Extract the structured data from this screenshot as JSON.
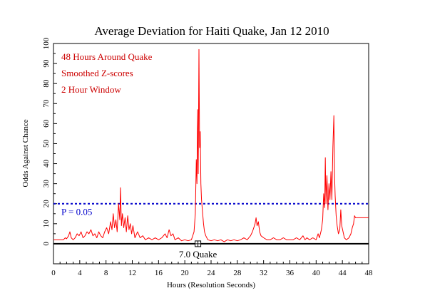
{
  "chart_data": {
    "type": "line",
    "title": "Average Deviation for Haiti Quake, Jan 12 2010",
    "xlabel": "Hours (Resolution Seconds)",
    "ylabel": "Odds Against Chance",
    "xlim": [
      0,
      48
    ],
    "ylim": [
      -10,
      100
    ],
    "x_ticks": [
      0,
      4,
      8,
      12,
      16,
      20,
      24,
      28,
      32,
      36,
      40,
      44,
      48
    ],
    "y_ticks": [
      0,
      10,
      20,
      30,
      40,
      50,
      60,
      70,
      80,
      90,
      100
    ],
    "annotations": [
      "48 Hours Around Quake",
      "Smoothed Z-scores",
      "2 Hour Window"
    ],
    "threshold": {
      "label": "P = 0.05",
      "value": 20
    },
    "event": {
      "label": "7.0 Quake",
      "x": 22
    },
    "series": [
      {
        "color": "#ff0000",
        "points": [
          [
            0,
            2
          ],
          [
            1,
            2
          ],
          [
            1.5,
            2
          ],
          [
            1.8,
            3
          ],
          [
            2,
            2.5
          ],
          [
            2.3,
            4
          ],
          [
            2.5,
            6
          ],
          [
            2.7,
            3
          ],
          [
            3,
            2
          ],
          [
            3.3,
            3
          ],
          [
            3.6,
            5
          ],
          [
            3.9,
            4
          ],
          [
            4.2,
            6
          ],
          [
            4.5,
            3
          ],
          [
            4.8,
            4
          ],
          [
            5.1,
            6
          ],
          [
            5.4,
            5
          ],
          [
            5.7,
            7
          ],
          [
            6,
            4
          ],
          [
            6.3,
            5
          ],
          [
            6.6,
            3
          ],
          [
            6.9,
            6
          ],
          [
            7.2,
            4
          ],
          [
            7.5,
            3
          ],
          [
            7.8,
            6
          ],
          [
            8.1,
            8
          ],
          [
            8.4,
            5
          ],
          [
            8.7,
            11
          ],
          [
            8.9,
            7
          ],
          [
            9.1,
            15
          ],
          [
            9.3,
            8
          ],
          [
            9.5,
            12
          ],
          [
            9.7,
            6
          ],
          [
            9.9,
            20
          ],
          [
            10.1,
            12
          ],
          [
            10.2,
            28
          ],
          [
            10.35,
            9
          ],
          [
            10.5,
            15
          ],
          [
            10.7,
            8
          ],
          [
            10.9,
            13
          ],
          [
            11.1,
            6
          ],
          [
            11.3,
            14
          ],
          [
            11.5,
            7
          ],
          [
            11.7,
            10
          ],
          [
            11.9,
            5
          ],
          [
            12.1,
            9
          ],
          [
            12.4,
            3
          ],
          [
            12.8,
            6
          ],
          [
            13.2,
            3
          ],
          [
            13.6,
            4
          ],
          [
            14,
            2
          ],
          [
            14.5,
            3
          ],
          [
            15,
            2
          ],
          [
            15.5,
            3
          ],
          [
            16,
            2
          ],
          [
            16.5,
            3
          ],
          [
            17,
            5
          ],
          [
            17.3,
            3
          ],
          [
            17.6,
            7
          ],
          [
            17.9,
            4
          ],
          [
            18.2,
            5
          ],
          [
            18.5,
            2
          ],
          [
            19,
            3
          ],
          [
            19.5,
            1.5
          ],
          [
            20,
            2
          ],
          [
            20.5,
            1.5
          ],
          [
            21,
            2
          ],
          [
            21.4,
            6
          ],
          [
            21.6,
            15
          ],
          [
            21.75,
            42
          ],
          [
            21.85,
            30
          ],
          [
            21.95,
            67
          ],
          [
            22.05,
            35
          ],
          [
            22.15,
            97
          ],
          [
            22.25,
            48
          ],
          [
            22.35,
            56
          ],
          [
            22.45,
            30
          ],
          [
            22.55,
            22
          ],
          [
            22.7,
            16
          ],
          [
            22.85,
            10
          ],
          [
            23,
            6
          ],
          [
            23.2,
            4
          ],
          [
            23.5,
            2
          ],
          [
            24,
            1.5
          ],
          [
            24.5,
            2
          ],
          [
            25,
            1.5
          ],
          [
            25.5,
            2
          ],
          [
            26,
            1
          ],
          [
            26.5,
            2
          ],
          [
            27,
            1.5
          ],
          [
            27.5,
            2
          ],
          [
            28,
            1.5
          ],
          [
            28.5,
            2
          ],
          [
            29,
            3
          ],
          [
            29.5,
            2
          ],
          [
            30,
            4
          ],
          [
            30.3,
            6
          ],
          [
            30.5,
            8
          ],
          [
            30.7,
            10
          ],
          [
            30.85,
            13
          ],
          [
            31,
            9
          ],
          [
            31.2,
            11
          ],
          [
            31.4,
            6
          ],
          [
            31.6,
            4
          ],
          [
            32,
            3
          ],
          [
            32.5,
            2
          ],
          [
            33,
            2
          ],
          [
            33.5,
            3
          ],
          [
            34,
            2
          ],
          [
            34.5,
            2
          ],
          [
            35,
            3
          ],
          [
            35.5,
            2
          ],
          [
            36,
            2
          ],
          [
            36.5,
            2
          ],
          [
            37,
            3
          ],
          [
            37.5,
            2
          ],
          [
            38,
            4
          ],
          [
            38.3,
            2
          ],
          [
            38.6,
            3
          ],
          [
            39,
            2
          ],
          [
            39.5,
            3
          ],
          [
            40,
            2
          ],
          [
            40.3,
            5
          ],
          [
            40.5,
            3
          ],
          [
            40.8,
            7
          ],
          [
            41,
            12
          ],
          [
            41.15,
            25
          ],
          [
            41.3,
            18
          ],
          [
            41.4,
            43
          ],
          [
            41.5,
            20
          ],
          [
            41.65,
            34
          ],
          [
            41.8,
            17
          ],
          [
            41.95,
            30
          ],
          [
            42.1,
            22
          ],
          [
            42.25,
            36
          ],
          [
            42.4,
            22
          ],
          [
            42.55,
            48
          ],
          [
            42.7,
            64
          ],
          [
            42.8,
            35
          ],
          [
            42.9,
            24
          ],
          [
            43.05,
            14
          ],
          [
            43.2,
            9
          ],
          [
            43.4,
            5
          ],
          [
            43.6,
            7
          ],
          [
            43.75,
            17
          ],
          [
            43.9,
            9
          ],
          [
            44.1,
            6
          ],
          [
            44.3,
            3
          ],
          [
            44.6,
            2
          ],
          [
            45,
            3
          ],
          [
            45.3,
            5
          ],
          [
            45.5,
            8
          ],
          [
            45.7,
            10
          ],
          [
            45.85,
            14
          ],
          [
            46,
            13
          ],
          [
            48,
            13
          ]
        ]
      }
    ]
  }
}
